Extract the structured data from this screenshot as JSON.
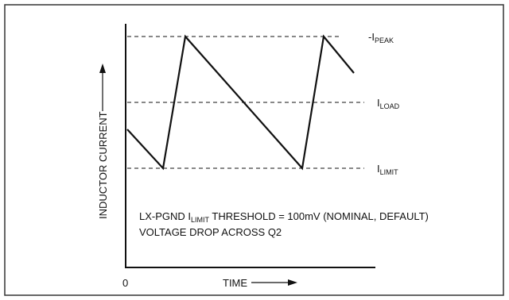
{
  "diagram": {
    "ylabel": "INDUCTOR CURRENT",
    "xlabel": "TIME",
    "origin_label": "0",
    "levels": {
      "peak": {
        "prefix": "-I",
        "sub": "PEAK"
      },
      "load": {
        "prefix": "I",
        "sub": "LOAD"
      },
      "limit": {
        "prefix": "I",
        "sub": "LIMIT"
      }
    },
    "note": {
      "line1_pre": "LX-PGND I",
      "line1_sub": "LIMIT",
      "line1_post": " THRESHOLD = 100mV (NOMINAL, DEFAULT)",
      "line2": "VOLTAGE DROP ACROSS Q2"
    }
  },
  "colors": {
    "line": "#111111",
    "frame": "#333333"
  }
}
